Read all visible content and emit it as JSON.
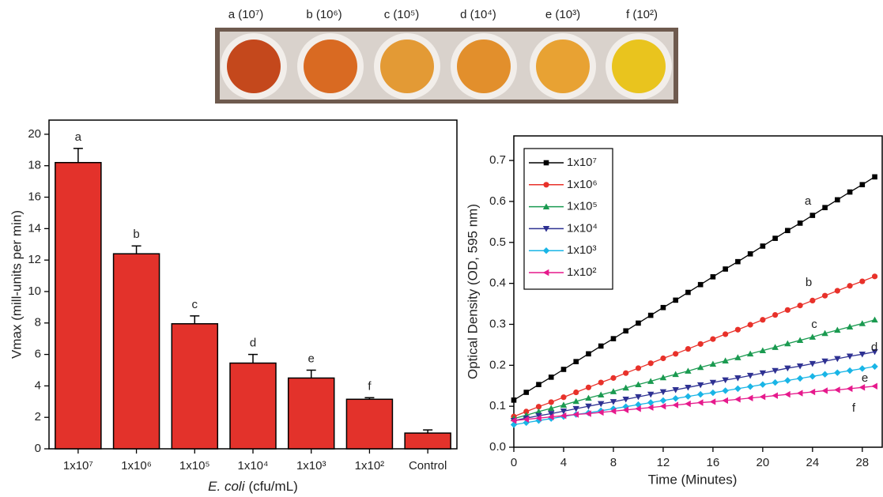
{
  "photo": {
    "labels": [
      "a (10⁷)",
      "b (10⁶)",
      "c (10⁵)",
      "d (10⁴)",
      "e (10³)",
      "f (10²)"
    ]
  },
  "chart_data": [
    {
      "type": "bar",
      "categories": [
        "1x10⁷",
        "1x10⁶",
        "1x10⁵",
        "1x10⁴",
        "1x10³",
        "1x10²",
        "Control"
      ],
      "values": [
        18.2,
        12.4,
        7.95,
        5.45,
        4.5,
        3.15,
        1.0
      ],
      "errors": [
        0.9,
        0.5,
        0.5,
        0.55,
        0.5,
        0.1,
        0.2
      ],
      "letters": [
        "a",
        "b",
        "c",
        "d",
        "e",
        "f",
        null
      ],
      "color": "#e3322b",
      "ylabel": "Vmax (mill-units per min)",
      "xlabel": [
        "E. coli",
        "(cfu/mL)"
      ],
      "ylim": [
        0,
        20.9
      ],
      "yticks": [
        0,
        2,
        4,
        6,
        8,
        10,
        12,
        14,
        16,
        18,
        20
      ]
    },
    {
      "type": "line",
      "xlabel": "Time (Minutes)",
      "ylabel": "Optical Density (OD, 595 nm)",
      "xlim": [
        0,
        29.6
      ],
      "xticks": [
        0,
        4,
        8,
        12,
        16,
        20,
        24,
        28
      ],
      "ylim": [
        0,
        0.76
      ],
      "yticks": [
        {
          "value": 0,
          "label": "0.0"
        },
        0.1,
        0.2,
        0.3,
        0.4,
        0.5,
        0.6,
        0.7
      ],
      "legend": "upper left",
      "x": [
        0,
        1,
        2,
        3,
        4,
        5,
        6,
        7,
        8,
        9,
        10,
        11,
        12,
        13,
        14,
        15,
        16,
        17,
        18,
        19,
        20,
        21,
        22,
        23,
        24,
        25,
        26,
        27,
        28,
        29
      ],
      "series": [
        {
          "name": "1x10⁷",
          "label": "a",
          "color": "#000000",
          "marker": "square",
          "values": [
            0.115,
            0.134,
            0.153,
            0.171,
            0.19,
            0.209,
            0.228,
            0.247,
            0.265,
            0.284,
            0.303,
            0.322,
            0.341,
            0.359,
            0.378,
            0.397,
            0.416,
            0.435,
            0.453,
            0.472,
            0.491,
            0.51,
            0.529,
            0.547,
            0.566,
            0.585,
            0.604,
            0.623,
            0.641,
            0.66
          ]
        },
        {
          "name": "1x10⁶",
          "label": "b",
          "color": "#e8312a",
          "marker": "circle",
          "values": [
            0.075,
            0.087,
            0.099,
            0.11,
            0.122,
            0.134,
            0.146,
            0.158,
            0.169,
            0.181,
            0.193,
            0.205,
            0.217,
            0.228,
            0.24,
            0.252,
            0.264,
            0.276,
            0.287,
            0.299,
            0.311,
            0.323,
            0.335,
            0.346,
            0.358,
            0.37,
            0.382,
            0.394,
            0.405,
            0.417
          ]
        },
        {
          "name": "1x10⁵",
          "label": "c",
          "color": "#1a9a50",
          "marker": "triangle-up",
          "values": [
            0.07,
            0.078,
            0.087,
            0.095,
            0.103,
            0.112,
            0.12,
            0.128,
            0.136,
            0.145,
            0.153,
            0.161,
            0.17,
            0.178,
            0.186,
            0.195,
            0.203,
            0.211,
            0.219,
            0.228,
            0.236,
            0.244,
            0.253,
            0.261,
            0.269,
            0.278,
            0.286,
            0.294,
            0.302,
            0.311
          ]
        },
        {
          "name": "1x10⁴",
          "label": "d",
          "color": "#2e3192",
          "marker": "triangle-down",
          "values": [
            0.065,
            0.071,
            0.077,
            0.082,
            0.088,
            0.094,
            0.1,
            0.106,
            0.111,
            0.117,
            0.123,
            0.129,
            0.135,
            0.14,
            0.146,
            0.152,
            0.158,
            0.164,
            0.169,
            0.175,
            0.181,
            0.187,
            0.193,
            0.198,
            0.204,
            0.21,
            0.216,
            0.222,
            0.227,
            0.233
          ]
        },
        {
          "name": "1x10³",
          "label": "e",
          "color": "#19b5e6",
          "marker": "diamond",
          "values": [
            0.055,
            0.06,
            0.065,
            0.07,
            0.075,
            0.08,
            0.084,
            0.089,
            0.094,
            0.099,
            0.104,
            0.109,
            0.114,
            0.119,
            0.124,
            0.129,
            0.133,
            0.138,
            0.143,
            0.148,
            0.153,
            0.158,
            0.163,
            0.168,
            0.173,
            0.178,
            0.182,
            0.187,
            0.192,
            0.197
          ]
        },
        {
          "name": "1x10²",
          "label": "f",
          "color": "#e6198c",
          "marker": "triangle-left",
          "values": [
            0.065,
            0.068,
            0.071,
            0.074,
            0.077,
            0.08,
            0.082,
            0.085,
            0.088,
            0.091,
            0.094,
            0.097,
            0.1,
            0.103,
            0.106,
            0.109,
            0.111,
            0.114,
            0.117,
            0.12,
            0.123,
            0.126,
            0.129,
            0.132,
            0.135,
            0.138,
            0.14,
            0.143,
            0.146,
            0.149
          ]
        }
      ]
    }
  ]
}
